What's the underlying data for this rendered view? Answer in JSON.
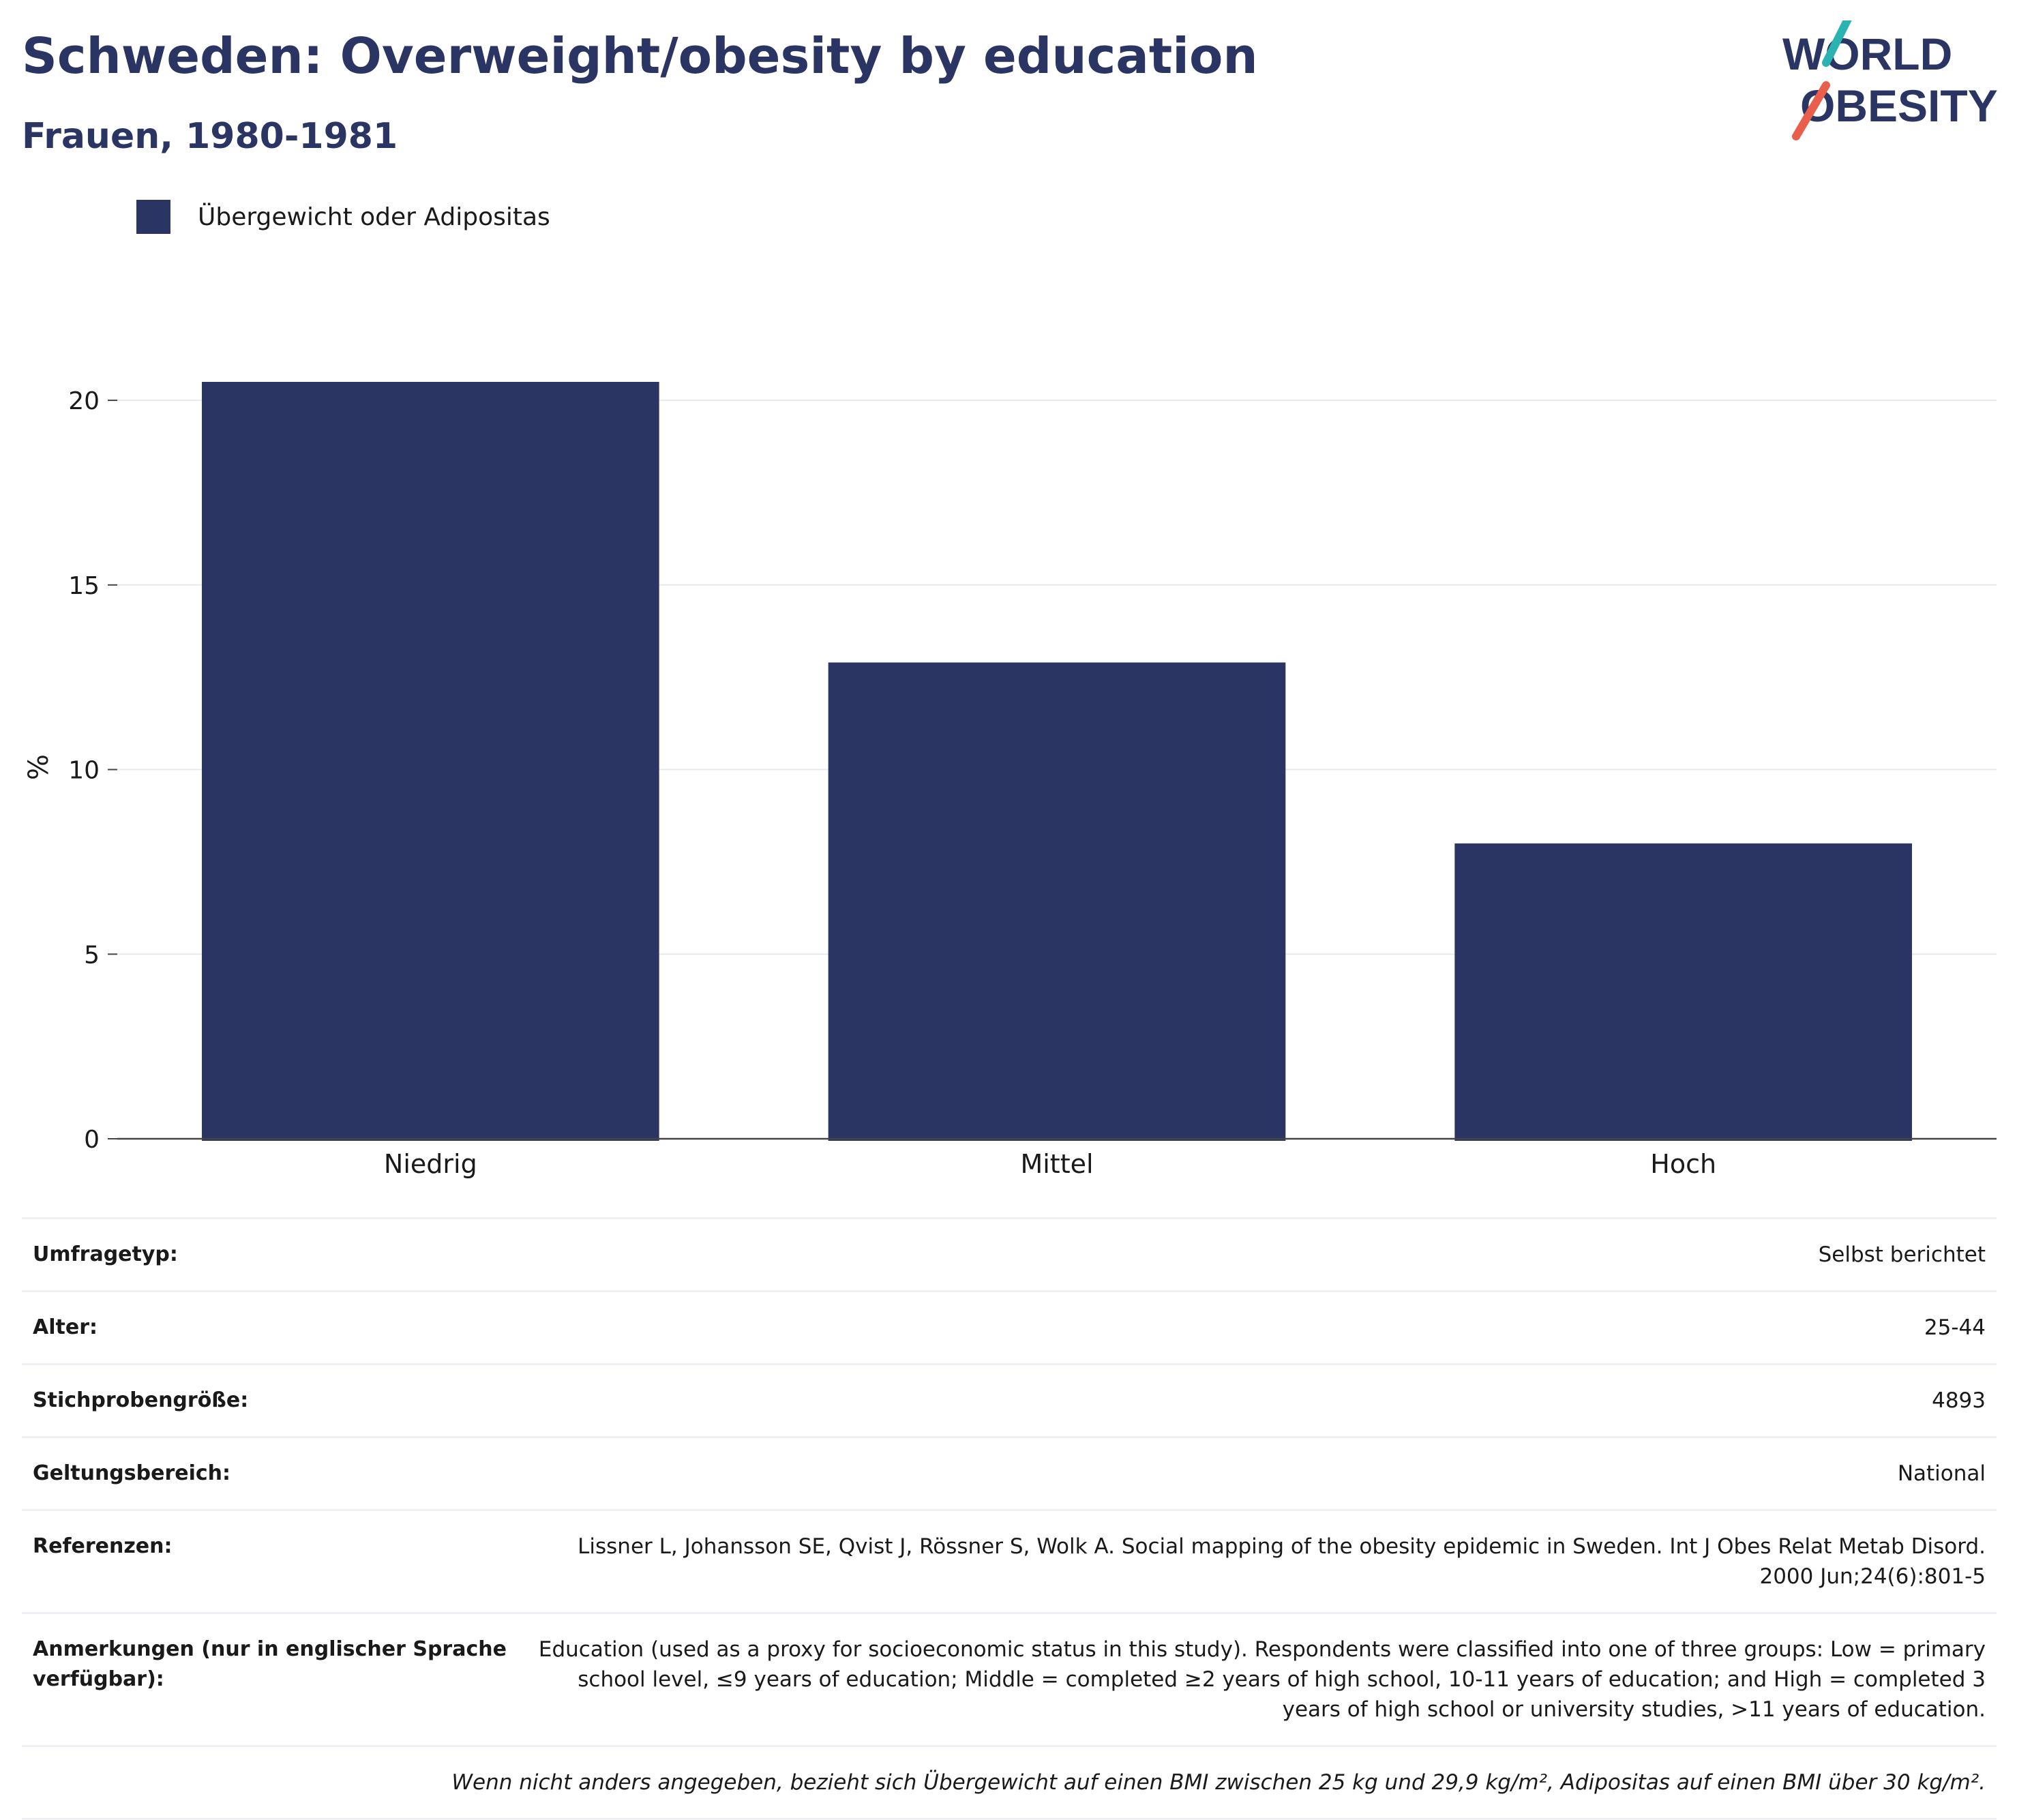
{
  "header": {
    "title": "Schweden: Overweight/obesity by education",
    "subtitle": "Frauen, 1980-1981"
  },
  "logo": {
    "line1": "WORLD",
    "line2": "OBESITY",
    "colors": {
      "text": "#2b3563",
      "slash_top": "#2bb3b1",
      "slash_bottom": "#e8604c"
    }
  },
  "legend": {
    "label": "Übergewicht oder Adipositas",
    "color": "#2b3563"
  },
  "chart_data": {
    "type": "bar",
    "categories": [
      "Niedrig",
      "Mittel",
      "Hoch"
    ],
    "series": [
      {
        "name": "Übergewicht oder Adipositas",
        "values": [
          20.5,
          12.9,
          8.0
        ],
        "color": "#2b3563"
      }
    ],
    "ylabel": "%",
    "xlabel": "",
    "ylim": [
      0,
      20.5
    ],
    "yticks": [
      0,
      5,
      10,
      15,
      20
    ],
    "grid": true
  },
  "meta": {
    "rows": [
      {
        "key": "Umfragetyp:",
        "value": "Selbst berichtet"
      },
      {
        "key": "Alter:",
        "value": "25-44"
      },
      {
        "key": "Stichprobengröße:",
        "value": "4893"
      },
      {
        "key": "Geltungsbereich:",
        "value": "National"
      },
      {
        "key": "Referenzen:",
        "value": "Lissner L, Johansson SE, Qvist J, Rössner S, Wolk A. Social mapping of the obesity epidemic in Sweden. Int J Obes Relat Metab Disord. 2000 Jun;24(6):801-5"
      },
      {
        "key": "Anmerkungen (nur in englischer Sprache verfügbar):",
        "value": "Education (used as a proxy for socioeconomic status in this study). Respondents were classified into one of three groups: Low = primary school level, ≤9 years of education; Middle = completed ≥2 years of high school, 10-11 years of education; and High = completed 3 years of high school or university studies, >11 years of education."
      }
    ],
    "footnote": "Wenn nicht anders angegeben, bezieht sich Übergewicht auf einen BMI zwischen 25 kg und 29,9 kg/m², Adipositas auf einen BMI über 30 kg/m²."
  }
}
